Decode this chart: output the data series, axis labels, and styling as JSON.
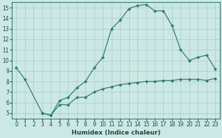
{
  "xlabel": "Humidex (Indice chaleur)",
  "bg_color": "#cce8e4",
  "line_color": "#2e7b6e",
  "grid_color": "#aacfca",
  "xlim": [
    -0.5,
    23.5
  ],
  "ylim": [
    4.5,
    15.5
  ],
  "xticks": [
    0,
    1,
    2,
    3,
    4,
    5,
    6,
    7,
    8,
    9,
    10,
    11,
    12,
    13,
    14,
    15,
    16,
    17,
    18,
    19,
    20,
    21,
    22,
    23
  ],
  "yticks": [
    5,
    6,
    7,
    8,
    9,
    10,
    11,
    12,
    13,
    14,
    15
  ],
  "line1_x": [
    0,
    1,
    3,
    4,
    5,
    6,
    7,
    8,
    9,
    10,
    11,
    12,
    13,
    14,
    15,
    16,
    17,
    18,
    19,
    20,
    21,
    22,
    23
  ],
  "line1_y": [
    9.3,
    8.2,
    5.0,
    4.8,
    6.2,
    6.5,
    7.4,
    8.0,
    9.3,
    10.3,
    13.0,
    13.8,
    14.9,
    15.2,
    15.3,
    14.7,
    14.7,
    13.3,
    11.0,
    10.0,
    10.3,
    10.5,
    9.2
  ],
  "line2_x": [
    3,
    4,
    5,
    6,
    7,
    8,
    9,
    10,
    11,
    12,
    13,
    14,
    15,
    16,
    17,
    18,
    19,
    20,
    21,
    22,
    23
  ],
  "line2_y": [
    5.0,
    4.8,
    5.8,
    5.8,
    6.5,
    6.5,
    7.0,
    7.3,
    7.5,
    7.7,
    7.8,
    7.9,
    8.0,
    8.0,
    8.1,
    8.1,
    8.2,
    8.2,
    8.2,
    8.1,
    8.3
  ]
}
